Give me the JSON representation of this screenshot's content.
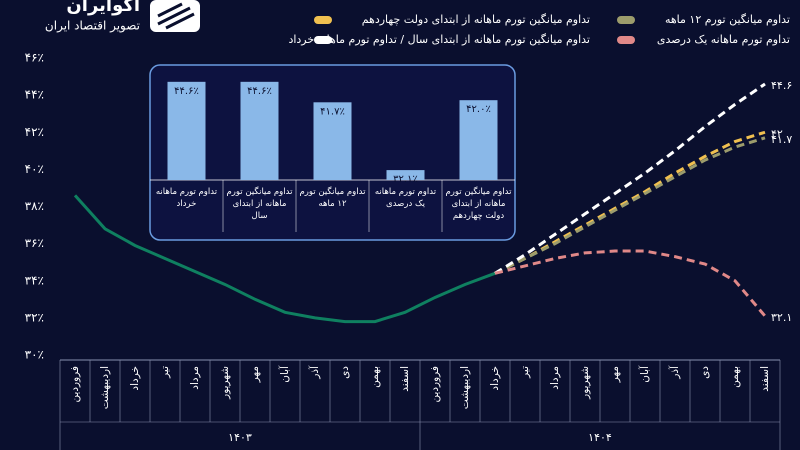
{
  "chart_data": {
    "type": "line",
    "brand": "اکوایران",
    "brand_subtitle": "تصویر اقتصاد ایران",
    "categories": [
      "فروردین",
      "اردیبهشت",
      "خرداد",
      "تیر",
      "مرداد",
      "شهریور",
      "مهر",
      "آبان",
      "آذر",
      "دی",
      "بهمن",
      "اسفند",
      "فروردین",
      "اردیبهشت",
      "خرداد",
      "تیر",
      "مرداد",
      "شهریور",
      "مهر",
      "آبان",
      "آذر",
      "دی",
      "بهمن",
      "اسفند"
    ],
    "year_groups": [
      "۱۴۰۳",
      "۱۴۰۴"
    ],
    "ylim": [
      30,
      46
    ],
    "yticks": [
      {
        "value": 30,
        "label": "۳۰٪"
      },
      {
        "value": 32,
        "label": "۳۲٪"
      },
      {
        "value": 34,
        "label": "۳۴٪"
      },
      {
        "value": 36,
        "label": "۳۶٪"
      },
      {
        "value": 38,
        "label": "۳۸٪"
      },
      {
        "value": 40,
        "label": "۴۰٪"
      },
      {
        "value": 42,
        "label": "۴۲٪"
      },
      {
        "value": 44,
        "label": "۴۴٪"
      },
      {
        "value": 46,
        "label": "۴۶٪"
      }
    ],
    "grid": false,
    "series": [
      {
        "color": "#0f8060",
        "dashed": false,
        "values": [
          38.6,
          36.8,
          35.9,
          35.2,
          34.5,
          33.8,
          33.0,
          32.3,
          32.0,
          31.8,
          31.8,
          32.3,
          33.1,
          33.8,
          34.4,
          null,
          null,
          null,
          null,
          null,
          null,
          null,
          null,
          null
        ]
      },
      {
        "name": "تداوم میانگین تورم ماهانه از ابتدای دولت چهاردهم",
        "color": "#f0c050",
        "dashed": true,
        "values": [
          null,
          null,
          null,
          null,
          null,
          null,
          null,
          null,
          null,
          null,
          null,
          null,
          null,
          null,
          34.4,
          35.2,
          36.1,
          37.0,
          37.9,
          38.8,
          39.8,
          40.7,
          41.5,
          42.0
        ],
        "value_labels": [
          null,
          null,
          null,
          null,
          null,
          null,
          null,
          null,
          null,
          null,
          null,
          null,
          null,
          null,
          null,
          null,
          null,
          null,
          null,
          null,
          null,
          null,
          null,
          "۴۲"
        ]
      },
      {
        "name": "تداوم میانگین تورم ۱۲ ماهه",
        "color": "#9c9c6c",
        "dashed": true,
        "values": [
          null,
          null,
          null,
          null,
          null,
          null,
          null,
          null,
          null,
          null,
          null,
          null,
          null,
          null,
          34.4,
          35.2,
          36.0,
          36.9,
          37.8,
          38.7,
          39.6,
          40.5,
          41.2,
          41.7
        ],
        "value_labels": [
          null,
          null,
          null,
          null,
          null,
          null,
          null,
          null,
          null,
          null,
          null,
          null,
          null,
          null,
          null,
          null,
          null,
          null,
          null,
          null,
          null,
          null,
          null,
          "۴۱.۷"
        ]
      },
      {
        "name": "تداوم میانگین تورم ماهانه از ابتدای سال / تداوم تورم ماهانه خرداد",
        "color": "#ffffff",
        "dashed": true,
        "values": [
          null,
          null,
          null,
          null,
          null,
          null,
          null,
          null,
          null,
          null,
          null,
          null,
          null,
          null,
          34.4,
          35.4,
          36.5,
          37.6,
          38.7,
          39.8,
          41.0,
          42.3,
          43.5,
          44.6
        ],
        "value_labels": [
          null,
          null,
          null,
          null,
          null,
          null,
          null,
          null,
          null,
          null,
          null,
          null,
          null,
          null,
          null,
          null,
          null,
          null,
          null,
          null,
          null,
          null,
          null,
          "۴۴.۶"
        ]
      },
      {
        "name": "تداوم تورم ماهانه یک درصدی",
        "color": "#e08888",
        "dashed": true,
        "values": [
          null,
          null,
          null,
          null,
          null,
          null,
          null,
          null,
          null,
          null,
          null,
          null,
          null,
          null,
          34.4,
          34.8,
          35.2,
          35.5,
          35.6,
          35.6,
          35.3,
          34.9,
          34.0,
          32.1
        ],
        "value_labels": [
          null,
          null,
          null,
          null,
          null,
          null,
          null,
          null,
          null,
          null,
          null,
          null,
          null,
          null,
          null,
          null,
          null,
          null,
          null,
          null,
          null,
          null,
          null,
          "۳۲.۱"
        ]
      }
    ],
    "inset": {
      "type": "bar",
      "color": "#8ab8e8",
      "ylim": [
        30.7,
        45
      ],
      "categories": [
        "تداوم تورم ماهانه خرداد",
        "تداوم میانگین تورم ماهانه از ابتدای سال",
        "تداوم میانگین تورم ۱۲ ماهه",
        "تداوم تورم ماهانه یک درصدی",
        "تداوم میانگین تورم ماهانه از ابتدای دولت چهاردهم"
      ],
      "values": [
        44.6,
        44.6,
        41.7,
        32.1,
        42.0
      ],
      "value_labels": [
        "۴۴.۶٪",
        "۴۴.۶٪",
        "۴۱.۷٪",
        "۳۲.۱٪",
        "۴۲.۰٪"
      ]
    }
  }
}
